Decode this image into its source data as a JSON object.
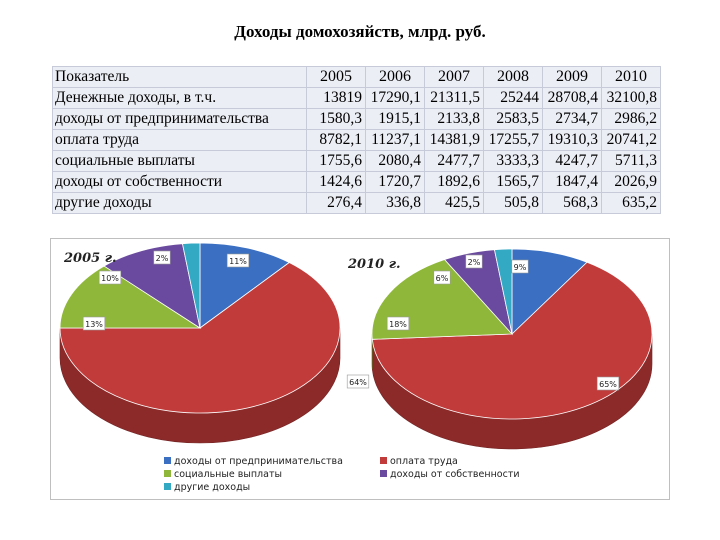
{
  "title": "Доходы домохозяйств, млрд. руб.",
  "table": {
    "header": [
      "Показатель",
      "2005",
      "2006",
      "2007",
      "2008",
      "2009",
      "2010"
    ],
    "rows": [
      {
        "label": "Денежные доходы, в т.ч.",
        "values": [
          "13819",
          "17290,1",
          "21311,5",
          "25244",
          "28708,4",
          "32100,8"
        ]
      },
      {
        "label": "доходы от предпринимательства",
        "values": [
          "1580,3",
          "1915,1",
          "2133,8",
          "2583,5",
          "2734,7",
          "2986,2"
        ]
      },
      {
        "label": "оплата труда",
        "values": [
          "8782,1",
          "11237,1",
          "14381,9",
          "17255,7",
          "19310,3",
          "20741,2"
        ]
      },
      {
        "label": "социальные выплаты",
        "values": [
          "1755,6",
          "2080,4",
          "2477,7",
          "3333,3",
          "4247,7",
          "5711,3"
        ]
      },
      {
        "label": "доходы от собственности",
        "values": [
          "1424,6",
          "1720,7",
          "1892,6",
          "1565,7",
          "1847,4",
          "2026,9"
        ]
      },
      {
        "label": "другие доходы",
        "values": [
          "276,4",
          "336,8",
          "425,5",
          "505,8",
          "568,3",
          "635,2"
        ]
      }
    ]
  },
  "chart_data": {
    "type": "pie",
    "colors": [
      "#3a6fc1",
      "#c23b3b",
      "#8fb83a",
      "#6a4a9e",
      "#33a9c4"
    ],
    "legend": [
      "доходы от предпринимательства",
      "оплата труда",
      "социальные выплаты",
      "доходы от собственности",
      "другие доходы"
    ],
    "pies": [
      {
        "title": "2005 г.",
        "values": [
          11,
          64,
          13,
          10,
          2
        ],
        "labels": [
          "11%",
          "64%",
          "13%",
          "10%",
          "2%"
        ]
      },
      {
        "title": "2010 г.",
        "values": [
          9,
          65,
          18,
          6,
          2
        ],
        "labels": [
          "9%",
          "65%",
          "18%",
          "6%",
          "2%"
        ]
      }
    ]
  }
}
